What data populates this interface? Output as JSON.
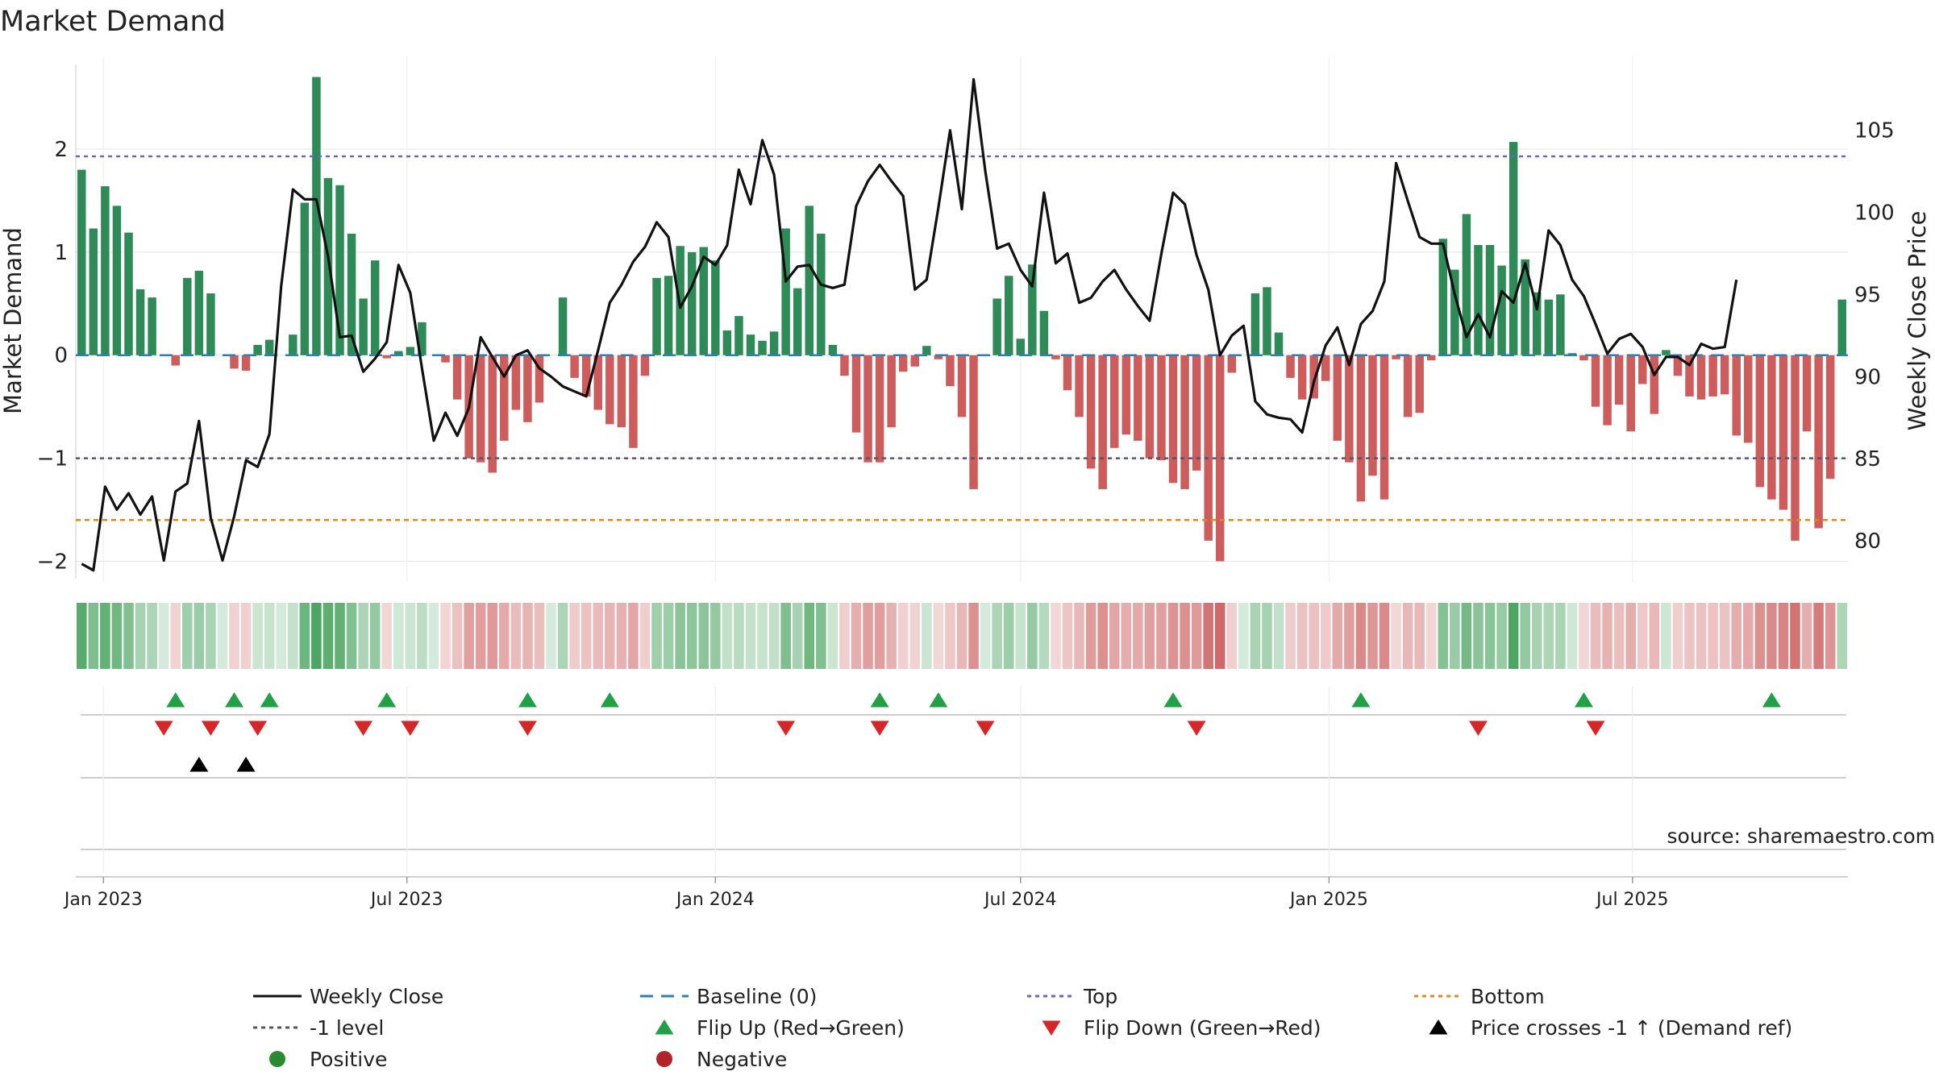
{
  "title": "Market Demand",
  "chart_data": {
    "type": "bar",
    "title": "Market Demand",
    "ylabel": "Market Demand",
    "y2label": "Weekly Close Price",
    "ylim": [
      -2.2,
      2.9
    ],
    "y2lim": [
      77.5,
      109.5
    ],
    "yticks": [
      -2,
      -1,
      0,
      1,
      2
    ],
    "y2ticks": [
      80,
      85,
      90,
      95,
      100,
      105
    ],
    "top_level": 1.93,
    "minus_one_level": -1.0,
    "bottom_level": -1.6,
    "start_date": "2022-12-19",
    "week_step_days": 7,
    "date_ticks": [
      {
        "label": "Jan 2023",
        "date": "2023-01-01"
      },
      {
        "label": "Jul 2023",
        "date": "2023-07-01"
      },
      {
        "label": "Jan 2024",
        "date": "2024-01-01"
      },
      {
        "label": "Jul 2024",
        "date": "2024-07-01"
      },
      {
        "label": "Jan 2025",
        "date": "2025-01-01"
      },
      {
        "label": "Jul 2025",
        "date": "2025-07-01"
      }
    ],
    "demand": [
      1.8,
      1.23,
      1.64,
      1.45,
      1.19,
      0.64,
      0.56,
      0,
      -0.1,
      0.75,
      0.82,
      0.6,
      0,
      -0.13,
      -0.15,
      0.1,
      0.15,
      0,
      0.2,
      1.48,
      2.7,
      1.72,
      1.65,
      1.18,
      0.55,
      0.92,
      -0.03,
      0.04,
      0.08,
      0.32,
      0,
      -0.07,
      -0.43,
      -1.0,
      -1.04,
      -1.14,
      -0.83,
      -0.53,
      -0.65,
      -0.46,
      0,
      0.56,
      -0.22,
      -0.4,
      -0.53,
      -0.67,
      -0.7,
      -0.9,
      -0.2,
      0.75,
      0.77,
      1.06,
      1.0,
      1.05,
      0.92,
      0.24,
      0.38,
      0.2,
      0.14,
      0.23,
      1.23,
      0.65,
      1.45,
      1.18,
      0.1,
      -0.2,
      -0.75,
      -1.04,
      -1.04,
      -0.7,
      -0.16,
      -0.11,
      0.09,
      -0.04,
      -0.3,
      -0.6,
      -1.3,
      0,
      0.55,
      0.77,
      0.16,
      0.88,
      0.43,
      -0.04,
      -0.34,
      -0.6,
      -1.1,
      -1.3,
      -0.9,
      -0.77,
      -0.83,
      -1.0,
      -1.02,
      -1.24,
      -1.3,
      -1.12,
      -1.8,
      -2.0,
      -0.17,
      0,
      0.6,
      0.66,
      0.22,
      -0.22,
      -0.43,
      -0.42,
      -0.25,
      -0.83,
      -1.04,
      -1.42,
      -1.17,
      -1.4,
      -0.04,
      -0.6,
      -0.56,
      -0.05,
      1.13,
      0.83,
      1.37,
      1.07,
      1.07,
      0.87,
      2.07,
      0.93,
      0.61,
      0.54,
      0.59,
      0.02,
      -0.05,
      -0.5,
      -0.68,
      -0.48,
      -0.74,
      -0.28,
      -0.57,
      0.05,
      -0.2,
      -0.4,
      -0.43,
      -0.4,
      -0.38,
      -0.78,
      -0.85,
      -1.28,
      -1.4,
      -1.5,
      -1.8,
      -0.74,
      -1.68,
      -1.2,
      0.54
    ],
    "price": [
      78.6,
      78.2,
      83.3,
      81.9,
      82.9,
      81.6,
      82.7,
      78.8,
      83.0,
      83.5,
      87.3,
      81.4,
      78.8,
      81.5,
      84.9,
      84.5,
      86.5,
      95.5,
      101.4,
      100.8,
      100.8,
      97.3,
      92.4,
      92.5,
      90.3,
      91.1,
      92.1,
      96.8,
      95.1,
      90.5,
      86.1,
      87.8,
      86.4,
      88.1,
      92.4,
      91.2,
      90.0,
      91.3,
      91.6,
      90.5,
      90.0,
      89.4,
      89.1,
      88.8,
      91.6,
      94.5,
      95.6,
      97.0,
      97.9,
      99.4,
      98.5,
      94.2,
      95.5,
      97.3,
      96.8,
      98.0,
      102.6,
      100.5,
      104.4,
      102.3,
      95.8,
      96.7,
      96.8,
      95.6,
      95.4,
      95.6,
      100.4,
      101.9,
      102.9,
      101.9,
      101.0,
      95.3,
      95.9,
      100.3,
      105.0,
      100.2,
      108.1,
      102.5,
      97.8,
      98.1,
      96.5,
      95.5,
      101.2,
      96.9,
      97.5,
      94.5,
      94.8,
      95.8,
      96.5,
      95.3,
      94.3,
      93.4,
      97.5,
      101.2,
      100.5,
      97.4,
      95.3,
      91.3,
      92.5,
      93.1,
      88.5,
      87.7,
      87.5,
      87.4,
      86.6,
      89.7,
      91.9,
      93.0,
      90.7,
      93.2,
      94.0,
      95.8,
      103.0,
      100.7,
      98.5,
      98.1,
      98.1,
      95.0,
      92.4,
      93.8,
      92.4,
      95.2,
      94.5,
      96.9,
      94.1,
      98.9,
      98.0,
      95.9,
      94.9,
      93.2,
      91.4,
      92.3,
      92.6,
      91.8,
      90.1,
      91.2,
      91.2,
      90.7,
      92.0,
      91.7,
      91.8,
      95.9
    ],
    "flip_up_weeks": [
      8,
      13,
      16,
      26,
      38,
      45,
      68,
      73,
      93,
      109,
      128,
      144
    ],
    "flip_down_weeks": [
      7,
      11,
      15,
      24,
      28,
      38,
      60,
      68,
      77,
      95,
      119,
      129
    ],
    "price_cross_weeks": [
      10,
      14
    ],
    "annotation": "source: sharemaestro.com",
    "legend": [
      {
        "label": "Weekly Close",
        "kind": "line-solid",
        "color": "#111111"
      },
      {
        "label": "Baseline (0)",
        "kind": "line-dashed",
        "color": "#2f7fb5"
      },
      {
        "label": "Top",
        "kind": "line-dotted",
        "color": "#6a64c9"
      },
      {
        "label": "Bottom",
        "kind": "line-dotted",
        "color": "#de8a1e"
      },
      {
        "label": "-1 level",
        "kind": "line-dotted",
        "color": "#555566"
      },
      {
        "label": "Flip Up (Red→Green)",
        "kind": "tri-up",
        "color": "#22a045"
      },
      {
        "label": "Flip Down (Green→Red)",
        "kind": "tri-down",
        "color": "#d62728"
      },
      {
        "label": "Price crosses -1 ↑ (Demand ref)",
        "kind": "tri-up",
        "color": "#000000"
      },
      {
        "label": "Positive",
        "kind": "dot",
        "color": "#2a8a32"
      },
      {
        "label": "Negative",
        "kind": "dot",
        "color": "#b22427"
      }
    ]
  },
  "colors": {
    "positive_bar": "#2e8b57",
    "negative_bar": "#cd5c5c",
    "price_line": "#111111",
    "baseline": "#2f7fb5",
    "top": "#6a64c9",
    "bottom": "#de8a1e",
    "minus_one": "#555566",
    "grid": "#e6e6e6",
    "text": "#222222",
    "annotation": "#8a8a8a"
  }
}
